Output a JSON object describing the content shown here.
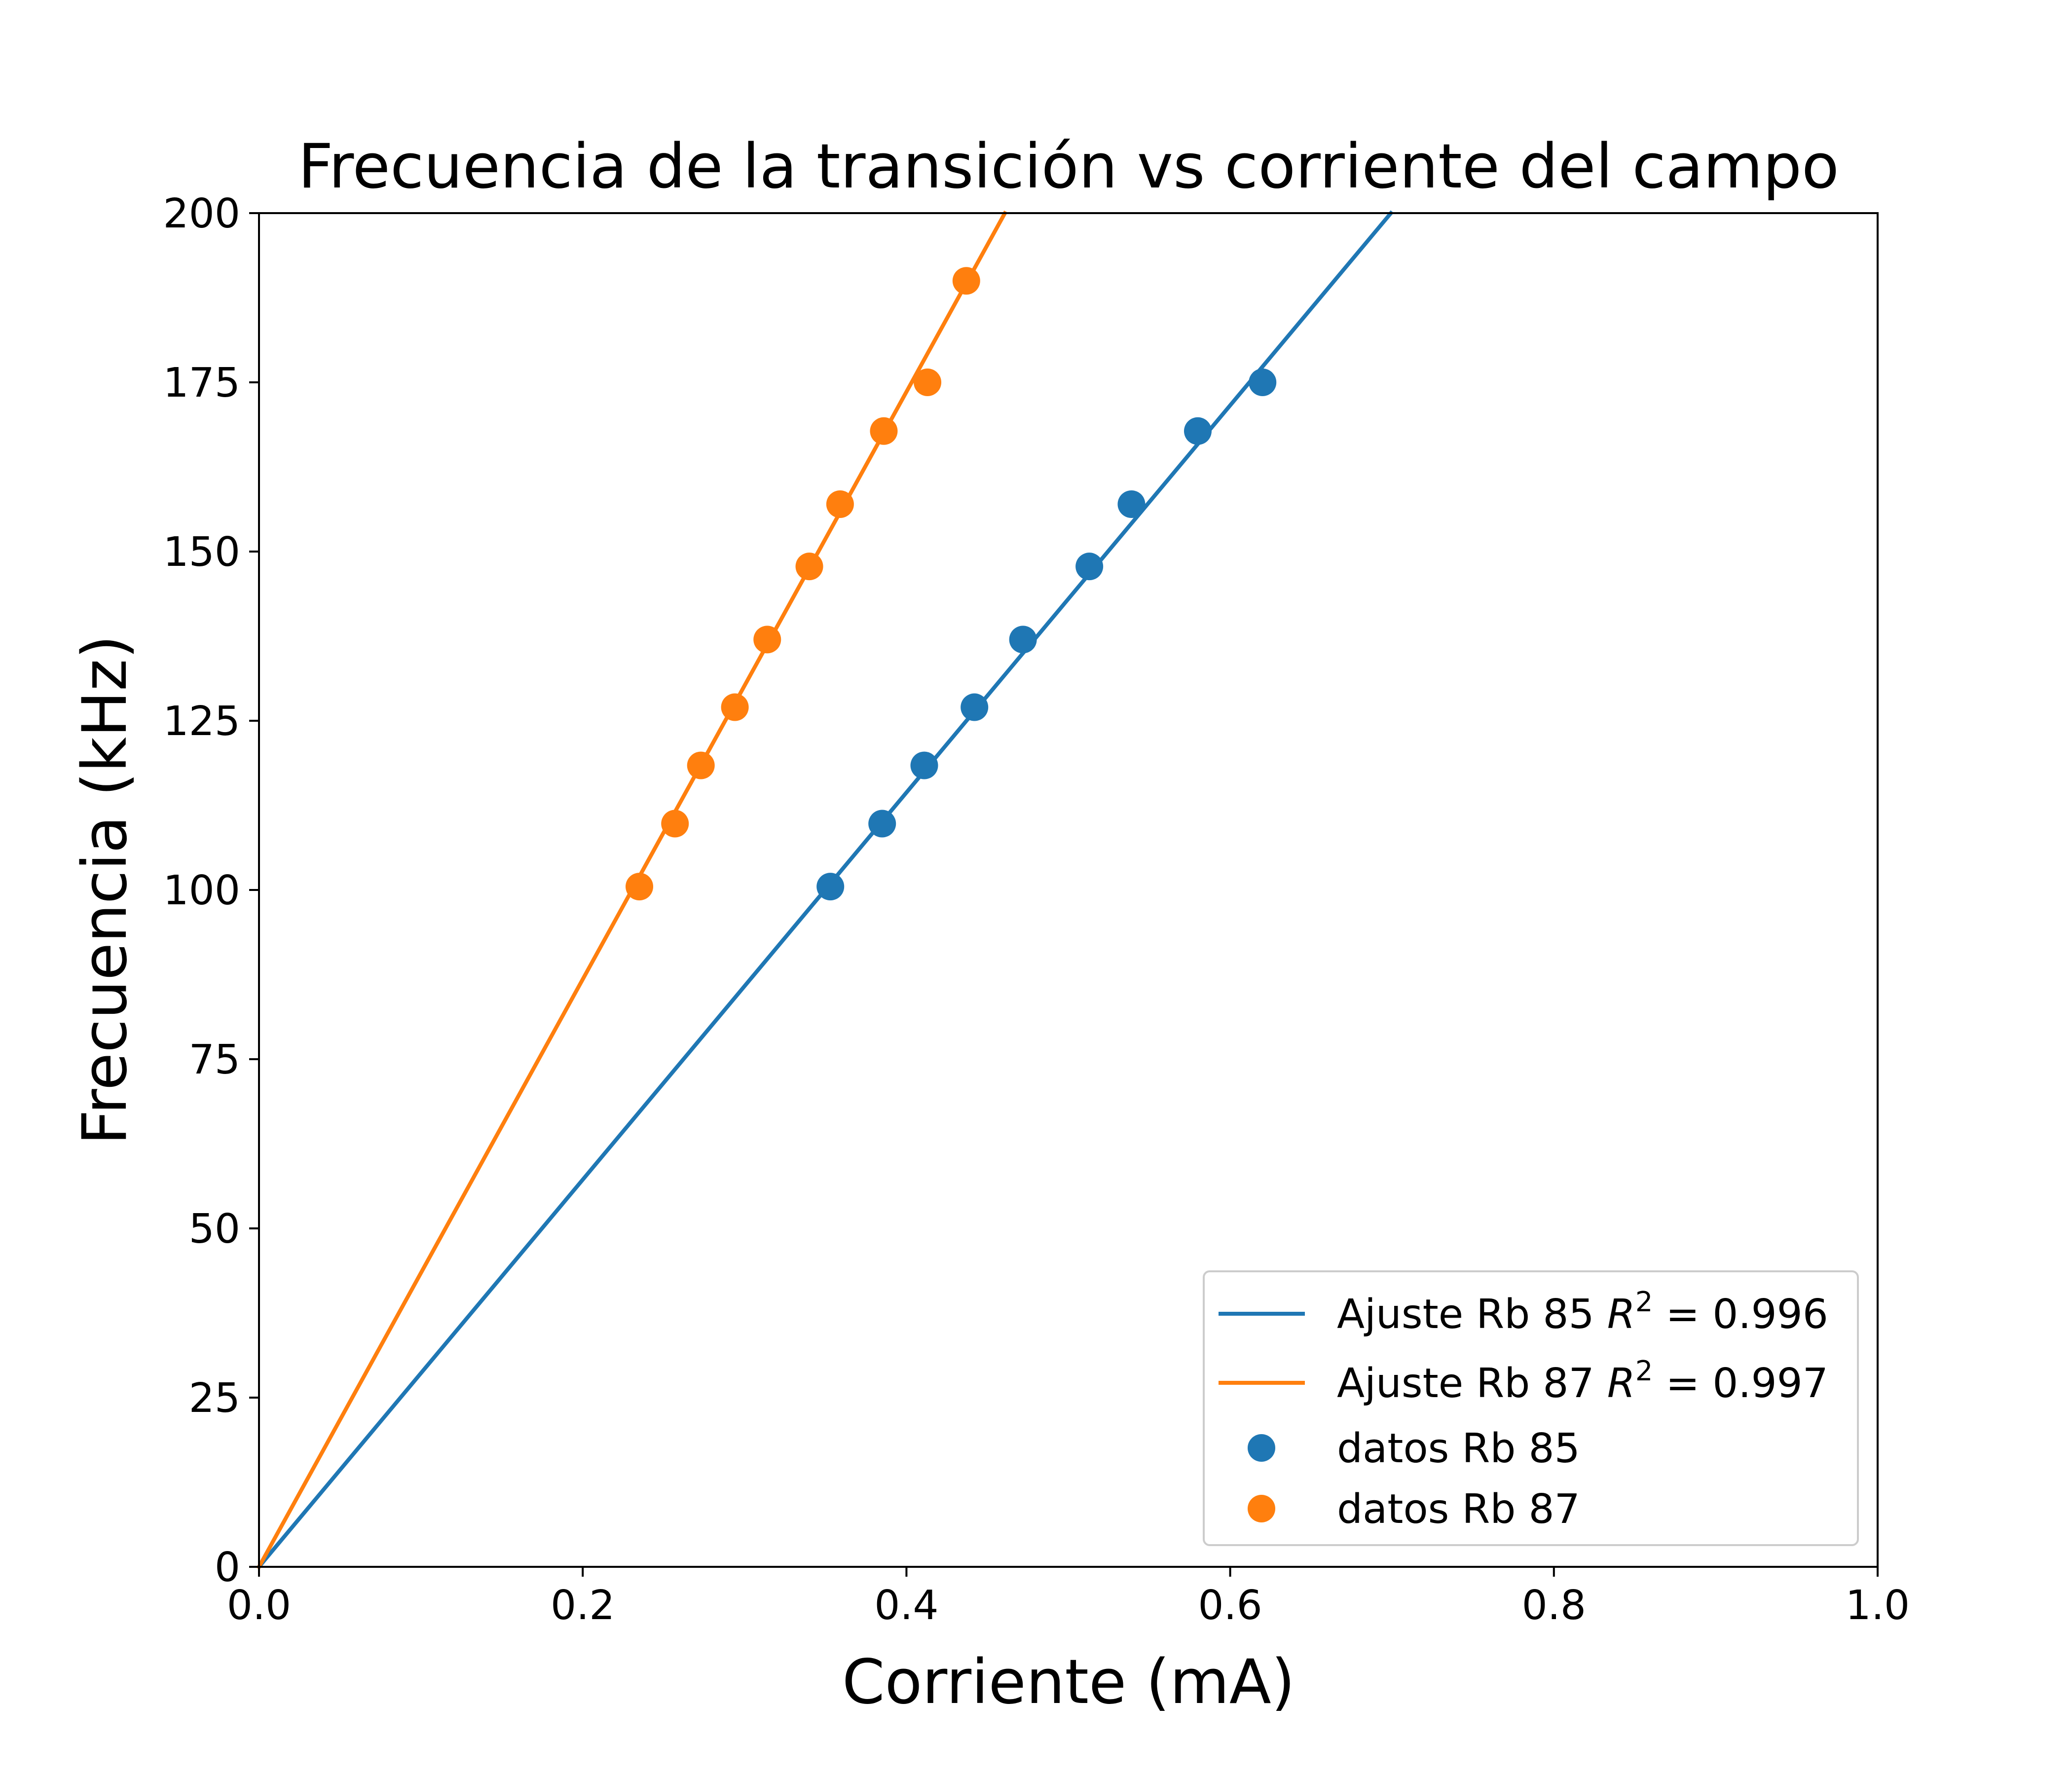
{
  "chart_data": {
    "type": "scatter",
    "title": "Frecuencia de la transición vs corriente del campo",
    "xlabel": "Corriente (mA)",
    "ylabel": "Frecuencia (kHz)",
    "xlim": [
      0.0,
      1.0
    ],
    "ylim": [
      0,
      200
    ],
    "xticks": [
      "0.0",
      "0.2",
      "0.4",
      "0.6",
      "0.8",
      "1.0"
    ],
    "yticks": [
      "0",
      "25",
      "50",
      "75",
      "100",
      "125",
      "150",
      "175",
      "200"
    ],
    "grid": false,
    "legend_position": "bottom-right",
    "colors": {
      "rb85": "#1f77b4",
      "rb87": "#ff7f0e",
      "axes": "#000000",
      "legend_border": "#cccccc"
    },
    "fits": [
      {
        "name": "Ajuste Rb 85",
        "r2_label": "R",
        "r2_exp": "2",
        "r2_value": " = 0.996",
        "color": "#1f77b4",
        "slope": 286,
        "x": [
          0.0,
          0.6993
        ]
      },
      {
        "name": "Ajuste Rb 87",
        "r2_label": "R",
        "r2_exp": "2",
        "r2_value": " = 0.997",
        "color": "#ff7f0e",
        "slope": 434,
        "x": [
          0.0,
          0.4608
        ]
      }
    ],
    "series": [
      {
        "name": "datos Rb 85",
        "color": "#1f77b4",
        "x": [
          0.353,
          0.385,
          0.411,
          0.442,
          0.472,
          0.513,
          0.539,
          0.58,
          0.62
        ],
        "y": [
          100.5,
          109.8,
          118.4,
          127.0,
          137.0,
          147.8,
          157.0,
          167.8,
          175.0
        ]
      },
      {
        "name": "datos Rb 87",
        "color": "#ff7f0e",
        "x": [
          0.235,
          0.257,
          0.273,
          0.294,
          0.314,
          0.34,
          0.359,
          0.386,
          0.413,
          0.437
        ],
        "y": [
          100.5,
          109.8,
          118.4,
          127.0,
          137.0,
          147.8,
          157.0,
          167.8,
          175.0,
          190.0
        ]
      }
    ]
  }
}
